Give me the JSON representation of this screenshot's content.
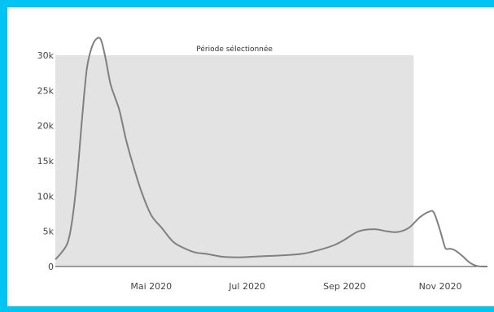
{
  "frame": {
    "border_color": "#00c4f2"
  },
  "chart_data": {
    "type": "line",
    "title": "",
    "xlabel": "",
    "ylabel": "",
    "x_ticks": [
      {
        "date": "2020-05-01",
        "label": "Mai 2020"
      },
      {
        "date": "2020-07-01",
        "label": "Jul 2020"
      },
      {
        "date": "2020-09-01",
        "label": "Sep 2020"
      },
      {
        "date": "2020-11-01",
        "label": "Nov 2020"
      }
    ],
    "y_ticks": [
      {
        "value": 0,
        "label": "0"
      },
      {
        "value": 5000,
        "label": "5k"
      },
      {
        "value": 10000,
        "label": "10k"
      },
      {
        "value": 15000,
        "label": "15k"
      },
      {
        "value": 20000,
        "label": "20k"
      },
      {
        "value": 25000,
        "label": "25k"
      },
      {
        "value": 30000,
        "label": "30k"
      }
    ],
    "ylim": [
      0,
      30000
    ],
    "xlim": [
      "2020-03-01",
      "2020-12-01"
    ],
    "grid": false,
    "line_color": "#808080",
    "shaded_region": {
      "label": "Période sélectionnée",
      "x_start": "2020-03-01",
      "x_end": "2020-10-15",
      "y_top": 30000,
      "color": "#e3e3e3"
    },
    "series": [
      {
        "x": [
          "2020-03-01",
          "2020-03-05",
          "2020-03-09",
          "2020-03-12",
          "2020-03-15",
          "2020-03-18",
          "2020-03-21",
          "2020-03-24",
          "2020-03-27",
          "2020-03-30",
          "2020-04-02",
          "2020-04-05",
          "2020-04-08",
          "2020-04-11",
          "2020-04-15",
          "2020-04-20",
          "2020-04-25",
          "2020-05-01",
          "2020-05-08",
          "2020-05-15",
          "2020-05-22",
          "2020-05-29",
          "2020-06-05",
          "2020-06-15",
          "2020-06-25",
          "2020-07-05",
          "2020-07-15",
          "2020-07-25",
          "2020-08-05",
          "2020-08-15",
          "2020-08-25",
          "2020-09-01",
          "2020-09-10",
          "2020-09-20",
          "2020-09-28",
          "2020-10-05",
          "2020-10-12",
          "2020-10-19",
          "2020-10-25",
          "2020-10-28",
          "2020-11-01",
          "2020-11-04",
          "2020-11-06",
          "2020-11-08",
          "2020-11-11",
          "2020-11-15",
          "2020-11-20",
          "2020-11-25",
          "2020-11-30",
          "2020-12-01"
        ],
        "y": [
          1000,
          2000,
          3500,
          7000,
          13000,
          21000,
          28000,
          31000,
          32300,
          32200,
          29500,
          26000,
          24000,
          22000,
          18000,
          14000,
          10500,
          7300,
          5400,
          3500,
          2600,
          2000,
          1800,
          1400,
          1300,
          1400,
          1500,
          1600,
          1800,
          2300,
          3000,
          3800,
          5000,
          5300,
          5000,
          4900,
          5500,
          7000,
          7800,
          7600,
          5000,
          2700,
          2500,
          2500,
          2200,
          1500,
          500,
          50,
          0,
          0
        ]
      }
    ]
  }
}
